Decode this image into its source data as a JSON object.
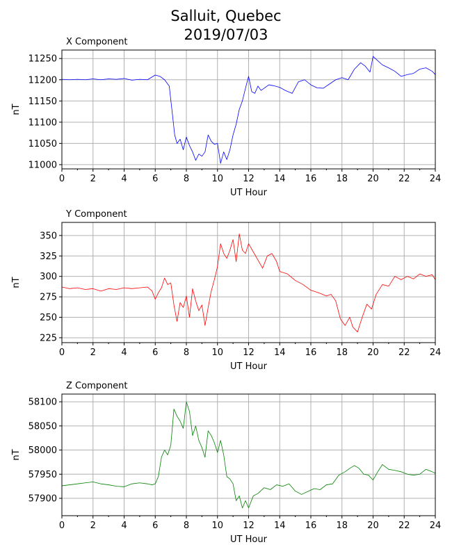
{
  "figure": {
    "title_line1": "Salluit, Quebec",
    "title_line2": "2019/07/03"
  },
  "chart_data": [
    {
      "type": "line",
      "title": "X Component",
      "xlabel": "UT Hour",
      "ylabel": "nT",
      "xlim": [
        0,
        24
      ],
      "ylim": [
        10990,
        11270
      ],
      "xticks": [
        0,
        2,
        4,
        6,
        8,
        10,
        12,
        14,
        16,
        18,
        20,
        22,
        24
      ],
      "yticks": [
        11000,
        11050,
        11100,
        11150,
        11200,
        11250
      ],
      "grid": true,
      "color": "#0000ff",
      "series": [
        {
          "x": [
            0,
            0.5,
            1,
            1.5,
            2,
            2.5,
            3,
            3.5,
            4,
            4.5,
            5,
            5.5,
            6,
            6.3,
            6.6,
            6.9,
            7.1,
            7.25,
            7.4,
            7.6,
            7.8,
            8.0,
            8.2,
            8.4,
            8.6,
            8.8,
            9.0,
            9.2,
            9.4,
            9.6,
            9.8,
            10.0,
            10.2,
            10.4,
            10.6,
            10.8,
            11.0,
            11.2,
            11.4,
            11.6,
            11.8,
            12.0,
            12.2,
            12.4,
            12.6,
            12.8,
            13.0,
            13.3,
            13.6,
            14.0,
            14.4,
            14.8,
            15.2,
            15.6,
            16.0,
            16.4,
            16.8,
            17.2,
            17.6,
            18.0,
            18.4,
            18.8,
            19.2,
            19.5,
            19.8,
            20.0,
            20.3,
            20.6,
            21.0,
            21.4,
            21.8,
            22.2,
            22.6,
            23.0,
            23.4,
            23.8,
            24.0
          ],
          "y": [
            11201,
            11200,
            11201,
            11200,
            11202,
            11200,
            11202,
            11201,
            11203,
            11199,
            11201,
            11200,
            11211,
            11208,
            11200,
            11185,
            11120,
            11070,
            11050,
            11060,
            11035,
            11065,
            11045,
            11030,
            11010,
            11025,
            11020,
            11030,
            11070,
            11055,
            11048,
            11050,
            11003,
            11030,
            11012,
            11035,
            11070,
            11095,
            11130,
            11150,
            11180,
            11208,
            11172,
            11168,
            11185,
            11175,
            11180,
            11188,
            11186,
            11182,
            11174,
            11168,
            11195,
            11200,
            11188,
            11181,
            11180,
            11190,
            11200,
            11205,
            11200,
            11225,
            11240,
            11232,
            11218,
            11255,
            11245,
            11235,
            11228,
            11220,
            11208,
            11212,
            11215,
            11225,
            11228,
            11220,
            11212
          ]
        }
      ]
    },
    {
      "type": "line",
      "title": "Y Component",
      "xlabel": "UT Hour",
      "ylabel": "nT",
      "xlim": [
        0,
        24
      ],
      "ylim": [
        219,
        366
      ],
      "xticks": [
        0,
        2,
        4,
        6,
        8,
        10,
        12,
        14,
        16,
        18,
        20,
        22,
        24
      ],
      "yticks": [
        225,
        250,
        275,
        300,
        325,
        350
      ],
      "grid": true,
      "color": "#ff0000",
      "series": [
        {
          "x": [
            0,
            0.5,
            1,
            1.5,
            2,
            2.5,
            3,
            3.5,
            4,
            4.5,
            5,
            5.5,
            5.8,
            6.0,
            6.2,
            6.4,
            6.6,
            6.8,
            7.0,
            7.2,
            7.4,
            7.6,
            7.8,
            8.0,
            8.2,
            8.4,
            8.6,
            8.8,
            9.0,
            9.2,
            9.4,
            9.6,
            9.8,
            10.0,
            10.2,
            10.4,
            10.6,
            10.8,
            11.0,
            11.2,
            11.4,
            11.6,
            11.8,
            12.0,
            12.3,
            12.6,
            12.9,
            13.2,
            13.5,
            13.8,
            14.0,
            14.5,
            15.0,
            15.5,
            16.0,
            16.5,
            17.0,
            17.3,
            17.6,
            17.9,
            18.2,
            18.5,
            18.7,
            19.0,
            19.3,
            19.6,
            19.9,
            20.2,
            20.6,
            21.0,
            21.4,
            21.8,
            22.2,
            22.6,
            23.0,
            23.4,
            23.8,
            24.0
          ],
          "y": [
            287,
            285,
            286,
            284,
            285,
            282,
            285,
            284,
            286,
            285,
            286,
            287,
            282,
            272,
            280,
            286,
            298,
            290,
            292,
            265,
            245,
            268,
            262,
            276,
            250,
            285,
            270,
            258,
            265,
            240,
            262,
            282,
            296,
            312,
            340,
            328,
            322,
            332,
            345,
            318,
            352,
            332,
            328,
            340,
            330,
            320,
            310,
            325,
            328,
            318,
            306,
            303,
            295,
            290,
            283,
            280,
            276,
            278,
            270,
            248,
            240,
            250,
            238,
            232,
            250,
            266,
            260,
            278,
            290,
            288,
            300,
            296,
            300,
            297,
            303,
            300,
            302,
            296
          ]
        }
      ]
    },
    {
      "type": "line",
      "title": "Z Component",
      "xlabel": "UT Hour",
      "ylabel": "nT",
      "xlim": [
        0,
        24
      ],
      "ylim": [
        57864,
        58116
      ],
      "xticks": [
        0,
        2,
        4,
        6,
        8,
        10,
        12,
        14,
        16,
        18,
        20,
        22,
        24
      ],
      "yticks": [
        57900,
        57950,
        58000,
        58050,
        58100
      ],
      "grid": true,
      "color": "#008000",
      "series": [
        {
          "x": [
            0,
            0.5,
            1,
            1.5,
            2,
            2.5,
            3,
            3.5,
            4,
            4.5,
            5,
            5.5,
            5.8,
            6.0,
            6.2,
            6.4,
            6.6,
            6.8,
            7.0,
            7.2,
            7.4,
            7.6,
            7.8,
            8.0,
            8.2,
            8.4,
            8.6,
            8.8,
            9.0,
            9.2,
            9.4,
            9.6,
            9.8,
            10.0,
            10.2,
            10.4,
            10.6,
            10.8,
            11.0,
            11.2,
            11.4,
            11.6,
            11.8,
            12.0,
            12.3,
            12.6,
            13.0,
            13.4,
            13.8,
            14.2,
            14.6,
            15.0,
            15.4,
            15.8,
            16.2,
            16.6,
            17.0,
            17.4,
            17.8,
            18.2,
            18.5,
            18.8,
            19.1,
            19.4,
            19.7,
            20.0,
            20.3,
            20.6,
            21.0,
            21.4,
            21.8,
            22.2,
            22.6,
            23.0,
            23.4,
            23.8,
            24.0
          ],
          "y": [
            57926,
            57928,
            57930,
            57932,
            57934,
            57930,
            57928,
            57925,
            57924,
            57930,
            57932,
            57930,
            57928,
            57930,
            57945,
            57985,
            58000,
            57990,
            58010,
            58085,
            58070,
            58060,
            58045,
            58100,
            58080,
            58030,
            58050,
            58020,
            58005,
            57985,
            58040,
            58030,
            58015,
            57995,
            58020,
            57990,
            57945,
            57940,
            57930,
            57895,
            57905,
            57880,
            57895,
            57880,
            57905,
            57910,
            57922,
            57918,
            57928,
            57925,
            57930,
            57915,
            57908,
            57914,
            57920,
            57918,
            57928,
            57930,
            57948,
            57955,
            57962,
            57968,
            57962,
            57950,
            57948,
            57938,
            57955,
            57970,
            57960,
            57958,
            57955,
            57950,
            57948,
            57950,
            57960,
            57955,
            57952
          ]
        }
      ]
    }
  ]
}
